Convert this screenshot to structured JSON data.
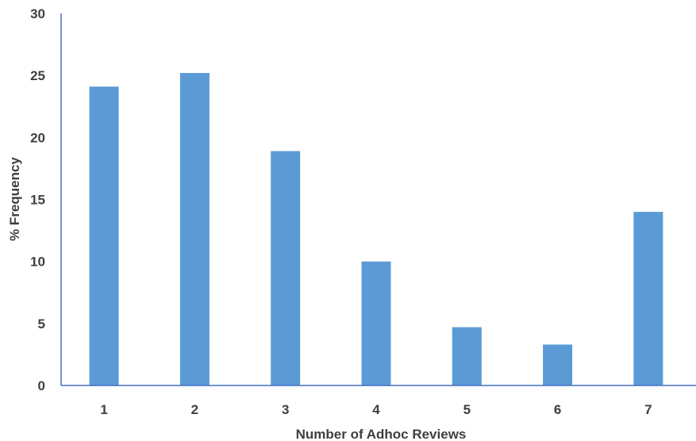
{
  "chart_data": {
    "type": "bar",
    "title": "",
    "xlabel": "Number of Adhoc Reviews",
    "ylabel": "% Frequency",
    "categories": [
      "1",
      "2",
      "3",
      "4",
      "5",
      "6",
      "7"
    ],
    "values": [
      24.1,
      25.2,
      18.9,
      10.0,
      4.7,
      3.3,
      14.0
    ],
    "ylim": [
      0,
      30
    ],
    "yticks": [
      "0",
      "5",
      "10",
      "15",
      "20",
      "25",
      "30"
    ],
    "grid": false,
    "legend": "none",
    "colors": {
      "bar": "#5b9bd5",
      "axis": "#4472c4",
      "text": "#3f3f3f"
    }
  }
}
